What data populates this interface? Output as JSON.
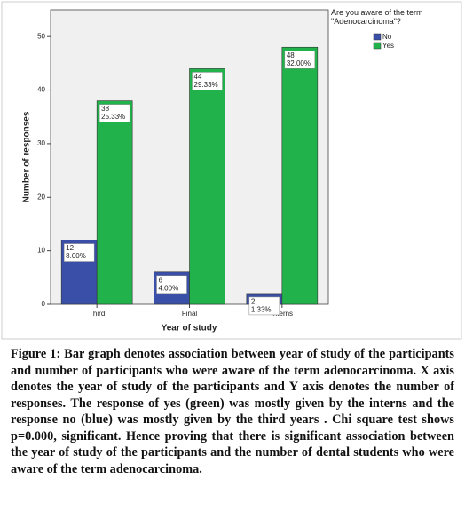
{
  "chart_data": {
    "type": "bar",
    "categories": [
      "Third",
      "Final",
      "Interns"
    ],
    "series": [
      {
        "name": "No",
        "color": "#3a4fa8",
        "values": [
          12,
          6,
          2
        ],
        "percent_values": [
          8.0,
          4.0,
          1.33
        ],
        "percent_labels": [
          "8.00%",
          "4.00%",
          "1.33%"
        ]
      },
      {
        "name": "Yes",
        "color": "#22b24c",
        "values": [
          38,
          44,
          48
        ],
        "percent_values": [
          25.33,
          29.33,
          32.0
        ],
        "percent_labels": [
          "25.33%",
          "29.33%",
          "32.00%"
        ]
      }
    ],
    "ylim": [
      0,
      55
    ],
    "yticks": [
      0,
      10,
      20,
      30,
      40,
      50
    ],
    "xlabel": "Year of study",
    "ylabel": "Number of responses",
    "legend_title": "Are you aware of the term \"Adenocarcinoma\"?",
    "legend_position": "right"
  },
  "figure_caption": {
    "label": "Figure 1:",
    "text": "Bar graph denotes association between year of study of the participants and number of participants who were aware of the term adenocarcinoma. X axis denotes the year of study of the participants and Y axis denotes the number of responses. The response of yes (green) was mostly given by the interns and the response no (blue) was mostly given by the third years . Chi square test shows p=0.000, significant. Hence proving that there is significant association between the year of study of the participants and the number of dental students who were aware of the term adenocarcinoma."
  }
}
